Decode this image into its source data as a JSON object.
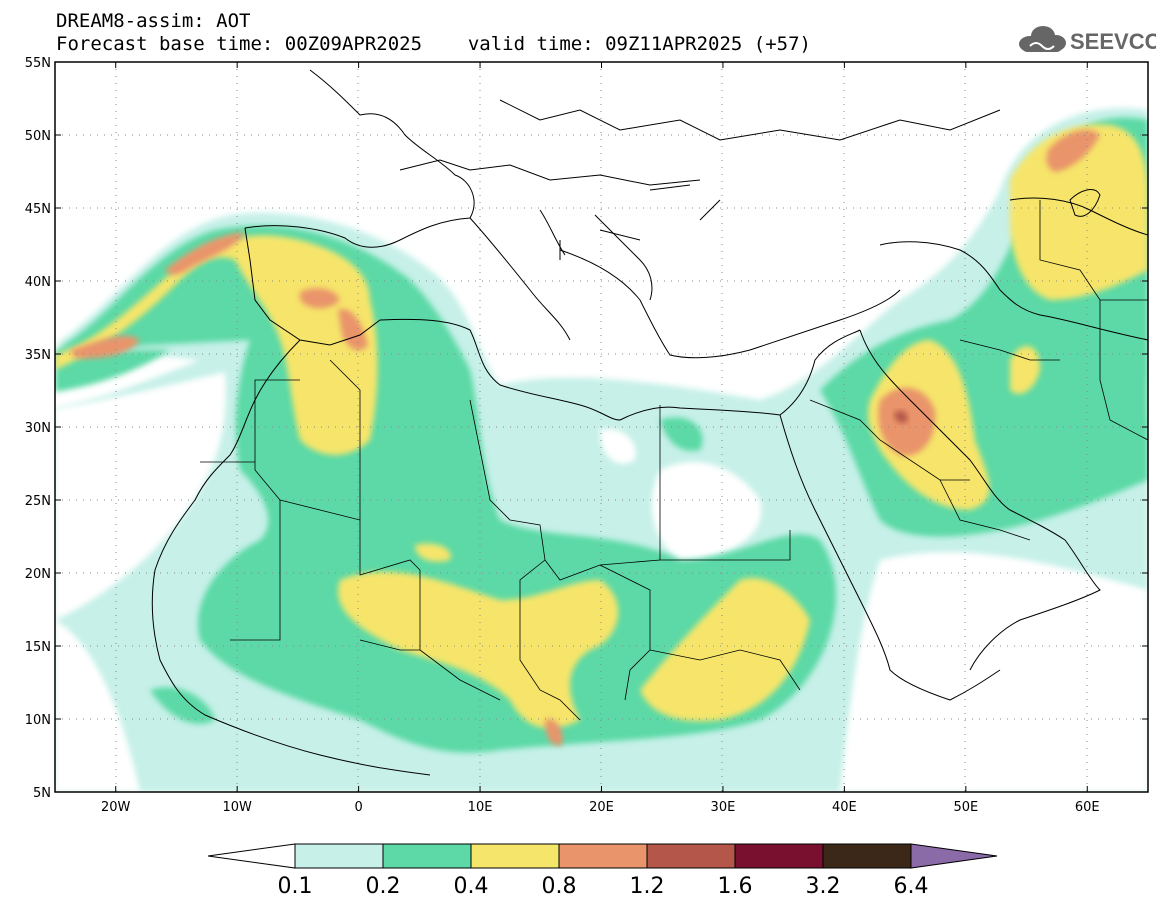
{
  "header": {
    "title": "DREAM8-assim: AOT",
    "base_label": "Forecast base time: 00Z09APR2025",
    "valid_label": "valid time: 09Z11APR2025 (+57)"
  },
  "logo": {
    "text": "SEEVCCC",
    "icon": "cloud-icon",
    "color": "#666666"
  },
  "chart_data": {
    "type": "heatmap",
    "variable": "AOT",
    "x_range": [
      -25,
      65
    ],
    "y_range": [
      5,
      55
    ],
    "x_ticks": [
      -20,
      -10,
      0,
      10,
      20,
      30,
      40,
      50,
      60
    ],
    "x_tick_labels": [
      "20W",
      "10W",
      "0",
      "10E",
      "20E",
      "30E",
      "40E",
      "50E",
      "60E"
    ],
    "y_ticks": [
      5,
      10,
      15,
      20,
      25,
      30,
      35,
      40,
      45,
      50,
      55
    ],
    "y_tick_labels": [
      "5N",
      "10N",
      "15N",
      "20N",
      "25N",
      "30N",
      "35N",
      "40N",
      "45N",
      "50N",
      "55N"
    ],
    "grid": true,
    "levels": [
      "0.1",
      "0.2",
      "0.4",
      "0.8",
      "1.2",
      "1.6",
      "3.2",
      "6.4"
    ],
    "colors": [
      "#c6f0e8",
      "#5cd9a6",
      "#f6e56b",
      "#e9946a",
      "#b5564a",
      "#7a1030",
      "#3c2818",
      "#8b6aa8"
    ]
  }
}
